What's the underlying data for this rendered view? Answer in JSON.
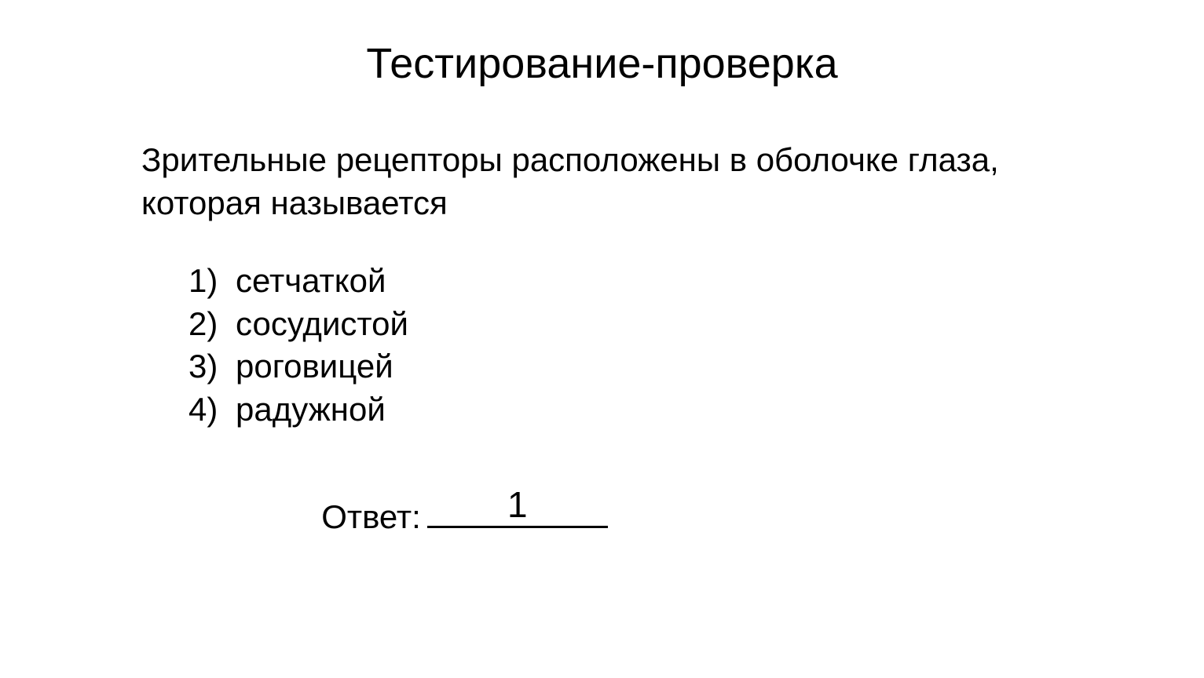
{
  "title": "Тестирование-проверка",
  "question": "Зрительные рецепторы расположены в оболочке глаза, которая называется",
  "options": [
    {
      "num": "1)",
      "text": "сетчаткой"
    },
    {
      "num": "2)",
      "text": "сосудистой"
    },
    {
      "num": "3)",
      "text": "роговицей"
    },
    {
      "num": "4)",
      "text": "радужной"
    }
  ],
  "answer_label": "Ответ:",
  "answer_value": "1",
  "colors": {
    "background": "#ffffff",
    "text": "#000000"
  },
  "typography": {
    "title_fontsize": 54,
    "body_fontsize": 42,
    "answer_value_fontsize": 46,
    "font_family": "Verdana"
  }
}
